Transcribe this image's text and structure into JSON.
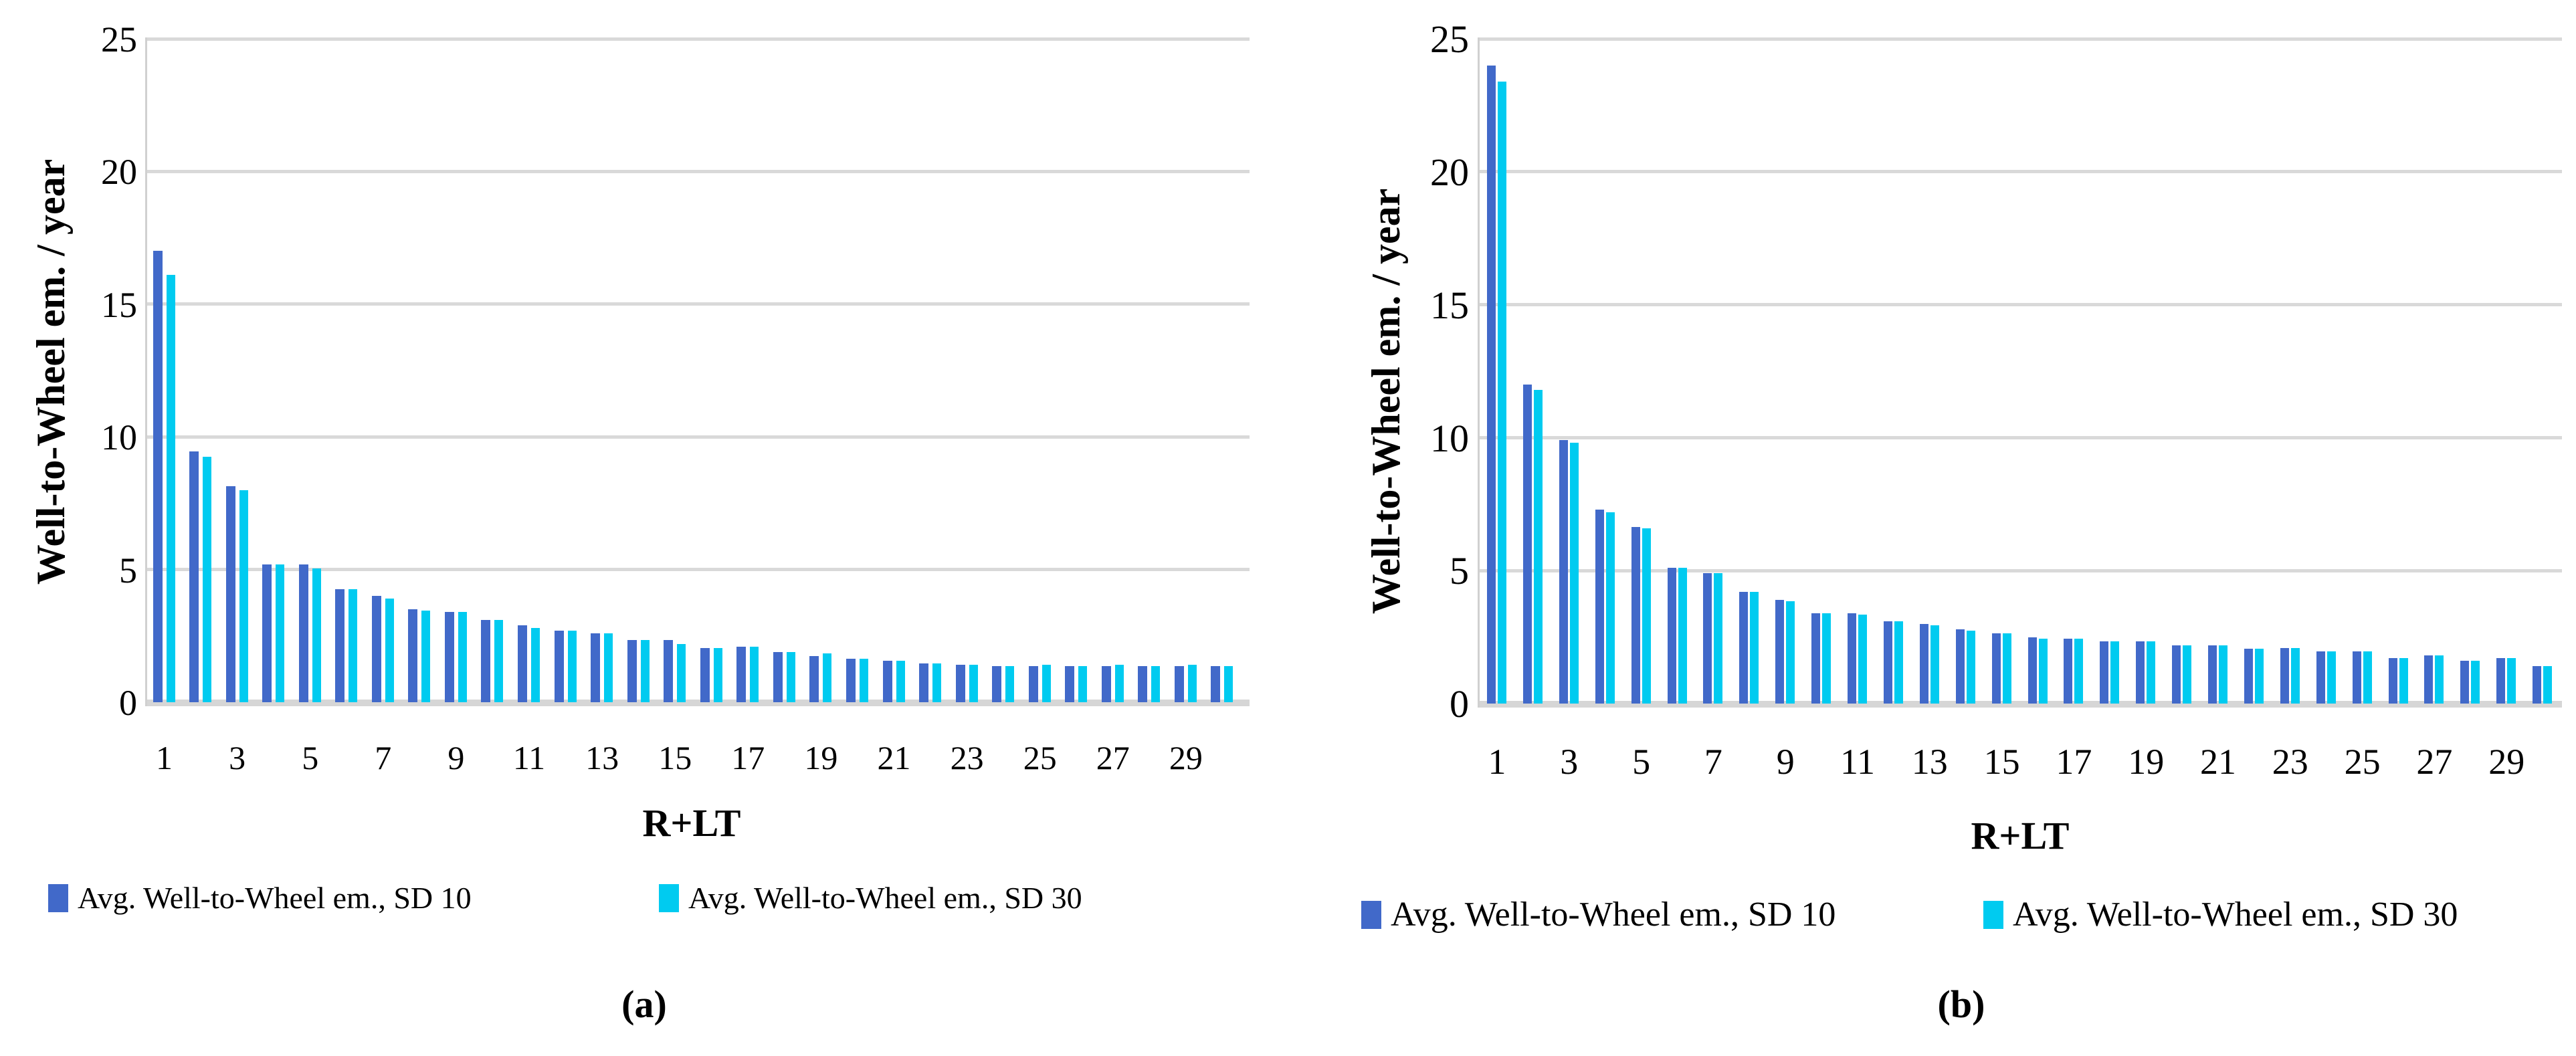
{
  "colors": {
    "sd10": "#4169C9",
    "sd30": "#00CBF0",
    "gridline": "#D9D9D9",
    "baseline": "#D6D6D6",
    "axis_line": "#D0D0D0",
    "text": "#000000",
    "background": "#FFFFFF"
  },
  "chart_data": [
    {
      "type": "bar",
      "caption": "(a)",
      "title": "",
      "xlabel": "R+LT",
      "ylabel": "Well-to-Wheel em. / year",
      "ylim": [
        0,
        25
      ],
      "y_ticks": [
        0,
        5,
        10,
        15,
        20,
        25
      ],
      "grid": "horizontal",
      "legend_position": "bottom",
      "categories": [
        1,
        2,
        3,
        4,
        5,
        6,
        7,
        8,
        9,
        10,
        11,
        12,
        13,
        14,
        15,
        16,
        17,
        18,
        19,
        20,
        21,
        22,
        23,
        24,
        25,
        26,
        27,
        28,
        29,
        30
      ],
      "x_tick_labels": [
        1,
        3,
        5,
        7,
        9,
        11,
        13,
        15,
        17,
        19,
        21,
        23,
        25,
        27,
        29
      ],
      "series": [
        {
          "name": "Avg. Well-to-Wheel em., SD 10",
          "color": "#4169C9",
          "values": [
            17.0,
            9.45,
            8.15,
            5.2,
            5.2,
            4.25,
            4.0,
            3.5,
            3.4,
            3.1,
            2.9,
            2.7,
            2.6,
            2.35,
            2.35,
            2.05,
            2.1,
            1.9,
            1.75,
            1.65,
            1.55,
            1.45,
            1.4,
            1.35,
            1.35,
            1.35,
            1.35,
            1.35,
            1.35,
            1.35
          ]
        },
        {
          "name": "Avg. Well-to-Wheel em., SD 30",
          "color": "#00CBF0",
          "values": [
            16.1,
            9.25,
            8.0,
            5.2,
            5.05,
            4.25,
            3.9,
            3.45,
            3.4,
            3.1,
            2.8,
            2.7,
            2.6,
            2.35,
            2.2,
            2.05,
            2.1,
            1.9,
            1.85,
            1.65,
            1.55,
            1.45,
            1.4,
            1.35,
            1.4,
            1.35,
            1.4,
            1.35,
            1.4,
            1.35
          ]
        }
      ]
    },
    {
      "type": "bar",
      "caption": "(b)",
      "title": "",
      "xlabel": "R+LT",
      "ylabel": "Well-to-Wheel em. / year",
      "ylim": [
        0,
        25
      ],
      "y_ticks": [
        0,
        5,
        10,
        15,
        20,
        25
      ],
      "grid": "horizontal",
      "legend_position": "bottom",
      "categories": [
        1,
        2,
        3,
        4,
        5,
        6,
        7,
        8,
        9,
        10,
        11,
        12,
        13,
        14,
        15,
        16,
        17,
        18,
        19,
        20,
        21,
        22,
        23,
        24,
        25,
        26,
        27,
        28,
        29,
        30
      ],
      "x_tick_labels": [
        1,
        3,
        5,
        7,
        9,
        11,
        13,
        15,
        17,
        19,
        21,
        23,
        25,
        27,
        29
      ],
      "series": [
        {
          "name": "Avg. Well-to-Wheel em., SD 10",
          "color": "#4169C9",
          "values": [
            24.0,
            12.0,
            9.9,
            7.3,
            6.65,
            5.1,
            4.9,
            4.2,
            3.9,
            3.4,
            3.4,
            3.1,
            3.0,
            2.8,
            2.65,
            2.5,
            2.45,
            2.35,
            2.35,
            2.2,
            2.2,
            2.05,
            2.1,
            1.95,
            1.95,
            1.72,
            1.82,
            1.62,
            1.7,
            1.42
          ]
        },
        {
          "name": "Avg. Well-to-Wheel em., SD 30",
          "color": "#00CBF0",
          "values": [
            23.4,
            11.8,
            9.8,
            7.2,
            6.6,
            5.1,
            4.9,
            4.2,
            3.85,
            3.4,
            3.35,
            3.1,
            2.95,
            2.75,
            2.65,
            2.45,
            2.45,
            2.35,
            2.35,
            2.2,
            2.2,
            2.05,
            2.1,
            1.95,
            1.95,
            1.72,
            1.82,
            1.62,
            1.7,
            1.42
          ]
        }
      ]
    }
  ]
}
